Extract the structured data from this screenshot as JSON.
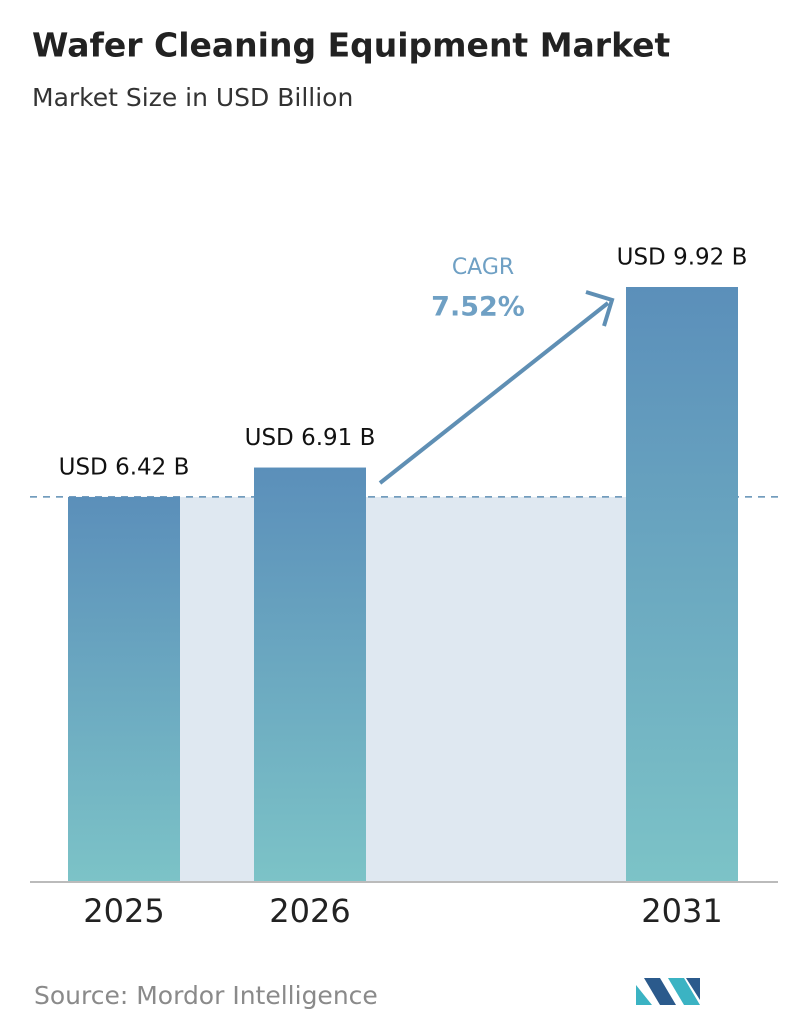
{
  "chart_data": {
    "type": "bar",
    "title": "Wafer Cleaning Equipment Market",
    "subtitle": "Market Size in USD Billion",
    "categories": [
      "2025",
      "2026",
      "2031"
    ],
    "values": [
      6.42,
      6.91,
      9.92
    ],
    "value_labels": [
      "USD 6.42 B",
      "USD 6.91 B",
      "USD 9.92 B"
    ],
    "cagr_label": "CAGR",
    "cagr_value": "7.52%",
    "source": "Source:  Mordor Intelligence"
  }
}
